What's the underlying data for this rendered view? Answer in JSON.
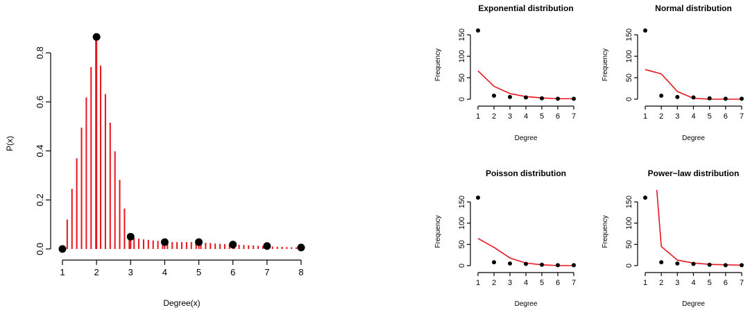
{
  "colors": {
    "line": "#e8141c",
    "point": "#000000",
    "axis": "#000000"
  },
  "chart_data": [
    {
      "type": "scatter",
      "title": "",
      "xlabel": "Degree(x)",
      "ylabel": "P(x)",
      "xlim": [
        1,
        8
      ],
      "ylim": [
        0,
        0.86
      ],
      "xticks": [
        "1",
        "2",
        "3",
        "4",
        "5",
        "6",
        "7",
        "8"
      ],
      "yticks": [
        "0.0",
        "0.2",
        "0.4",
        "0.6",
        "0.8"
      ],
      "points": {
        "x": [
          1,
          2,
          3,
          4,
          5,
          6,
          7,
          8
        ],
        "y": [
          0.0,
          0.865,
          0.05,
          0.028,
          0.028,
          0.018,
          0.012,
          0.006
        ]
      },
      "spikes": {
        "x": [
          1.14,
          1.28,
          1.42,
          1.56,
          1.7,
          1.84,
          1.98,
          2.12,
          2.26,
          2.4,
          2.54,
          2.68,
          2.82,
          2.96,
          3.1,
          3.24,
          3.38,
          3.52,
          3.66,
          3.8,
          3.94,
          4.08,
          4.22,
          4.36,
          4.5,
          4.64,
          4.78,
          4.92,
          5.06,
          5.2,
          5.34,
          5.48,
          5.62,
          5.76,
          5.9,
          6.04,
          6.18,
          6.32,
          6.46,
          6.6,
          6.74,
          6.88,
          7.02,
          7.16,
          7.3,
          7.44,
          7.58,
          7.72,
          7.86
        ],
        "y": [
          0.12,
          0.245,
          0.37,
          0.495,
          0.618,
          0.742,
          0.865,
          0.748,
          0.632,
          0.515,
          0.398,
          0.282,
          0.165,
          0.048,
          0.044,
          0.042,
          0.039,
          0.037,
          0.035,
          0.033,
          0.031,
          0.029,
          0.028,
          0.028,
          0.028,
          0.028,
          0.028,
          0.027,
          0.026,
          0.025,
          0.024,
          0.022,
          0.021,
          0.02,
          0.019,
          0.018,
          0.017,
          0.016,
          0.015,
          0.014,
          0.013,
          0.012,
          0.011,
          0.01,
          0.009,
          0.009,
          0.008,
          0.007,
          0.007
        ]
      }
    },
    {
      "type": "line",
      "title": "Exponential distribution",
      "xlabel": "Degree",
      "ylabel": "Frequency",
      "xlim": [
        1,
        7
      ],
      "ylim": [
        0,
        160
      ],
      "xticks": [
        "1",
        "2",
        "3",
        "4",
        "5",
        "6",
        "7"
      ],
      "yticks": [
        "0",
        "50",
        "100",
        "150"
      ],
      "points": {
        "x": [
          1,
          2,
          3,
          4,
          5,
          6,
          7
        ],
        "y": [
          160,
          8,
          5,
          4,
          2,
          1,
          1
        ]
      },
      "fit": {
        "x": [
          1,
          2,
          3,
          4,
          5,
          6,
          7
        ],
        "y": [
          66,
          30,
          13,
          6,
          3,
          1,
          1
        ]
      }
    },
    {
      "type": "line",
      "title": "Normal distribution",
      "xlabel": "Degree",
      "ylabel": "Frequency",
      "xlim": [
        1,
        7
      ],
      "ylim": [
        0,
        160
      ],
      "xticks": [
        "1",
        "2",
        "3",
        "4",
        "5",
        "6",
        "7"
      ],
      "yticks": [
        "0",
        "50",
        "100",
        "150"
      ],
      "points": {
        "x": [
          1,
          2,
          3,
          4,
          5,
          6,
          7
        ],
        "y": [
          160,
          8,
          5,
          4,
          2,
          1,
          1
        ]
      },
      "fit": {
        "x": [
          1,
          2,
          3,
          4,
          5,
          6,
          7
        ],
        "y": [
          69,
          59,
          18,
          2,
          0,
          0,
          0
        ]
      }
    },
    {
      "type": "line",
      "title": "Poisson distribution",
      "xlabel": "Degree",
      "ylabel": "Frequency",
      "xlim": [
        1,
        7
      ],
      "ylim": [
        0,
        160
      ],
      "xticks": [
        "1",
        "2",
        "3",
        "4",
        "5",
        "6",
        "7"
      ],
      "yticks": [
        "0",
        "50",
        "100",
        "150"
      ],
      "points": {
        "x": [
          1,
          2,
          3,
          4,
          5,
          6,
          7
        ],
        "y": [
          160,
          8,
          5,
          4,
          2,
          1,
          1
        ]
      },
      "fit": {
        "x": [
          1,
          2,
          3,
          4,
          5,
          6,
          7
        ],
        "y": [
          64,
          43,
          18,
          6,
          2,
          0,
          0
        ]
      }
    },
    {
      "type": "line",
      "title": "Power−law distribution",
      "xlabel": "Degree",
      "ylabel": "Frequency",
      "xlim": [
        1,
        7
      ],
      "ylim": [
        0,
        160
      ],
      "xticks": [
        "1",
        "2",
        "3",
        "4",
        "5",
        "6",
        "7"
      ],
      "yticks": [
        "0",
        "50",
        "100",
        "150"
      ],
      "points": {
        "x": [
          1,
          2,
          3,
          4,
          5,
          6,
          7
        ],
        "y": [
          160,
          8,
          5,
          4,
          2,
          1,
          1
        ]
      },
      "fit": {
        "x": [
          1.72,
          2,
          3,
          4,
          5,
          6,
          7
        ],
        "y": [
          178,
          45,
          13,
          6,
          3,
          2,
          1
        ]
      }
    }
  ]
}
